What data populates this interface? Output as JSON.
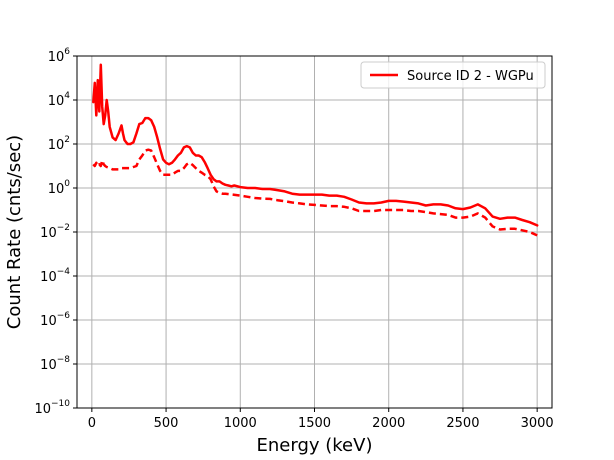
{
  "chart_data": {
    "type": "line",
    "title": "",
    "xlabel": "Energy (keV)",
    "ylabel": "Count Rate (cnts/sec)",
    "xlim": [
      -100,
      3100
    ],
    "ylim_exponent": [
      -10,
      6
    ],
    "y_scale": "log",
    "grid": true,
    "legend_position": "top-right",
    "x_ticks": [
      {
        "value": 0,
        "label": "0"
      },
      {
        "value": 500,
        "label": "500"
      },
      {
        "value": 1000,
        "label": "1000"
      },
      {
        "value": 1500,
        "label": "1500"
      },
      {
        "value": 2000,
        "label": "2000"
      },
      {
        "value": 2500,
        "label": "2500"
      },
      {
        "value": 3000,
        "label": "3000"
      }
    ],
    "y_ticks": [
      {
        "exp": 6,
        "base": "10",
        "sup": "6"
      },
      {
        "exp": 4,
        "base": "10",
        "sup": "4"
      },
      {
        "exp": 2,
        "base": "10",
        "sup": "2"
      },
      {
        "exp": 0,
        "base": "10",
        "sup": "0"
      },
      {
        "exp": -2,
        "base": "10",
        "sup": "−2"
      },
      {
        "exp": -4,
        "base": "10",
        "sup": "−4"
      },
      {
        "exp": -6,
        "base": "10",
        "sup": "−6"
      },
      {
        "exp": -8,
        "base": "10",
        "sup": "−8"
      },
      {
        "exp": -10,
        "base": "10",
        "sup": "−10"
      }
    ],
    "series": [
      {
        "name": "Source ID 2 - WGPu",
        "color": "#ff0000",
        "style": "solid",
        "x": [
          10,
          20,
          30,
          40,
          50,
          60,
          70,
          80,
          90,
          100,
          110,
          120,
          140,
          160,
          180,
          200,
          210,
          220,
          240,
          260,
          280,
          300,
          320,
          340,
          360,
          380,
          400,
          420,
          440,
          460,
          480,
          500,
          520,
          540,
          560,
          580,
          600,
          620,
          640,
          660,
          680,
          700,
          720,
          740,
          760,
          780,
          800,
          820,
          840,
          860,
          880,
          900,
          920,
          940,
          960,
          1000,
          1050,
          1100,
          1150,
          1200,
          1250,
          1300,
          1350,
          1400,
          1450,
          1500,
          1550,
          1600,
          1650,
          1700,
          1750,
          1800,
          1850,
          1900,
          1950,
          2000,
          2050,
          2100,
          2150,
          2200,
          2250,
          2300,
          2350,
          2400,
          2450,
          2500,
          2550,
          2600,
          2650,
          2700,
          2750,
          2800,
          2850,
          2900,
          2950,
          3000
        ],
        "y": [
          8000,
          60000,
          2000,
          80000,
          3000,
          400000,
          5000,
          800,
          2000,
          10000,
          3000,
          600,
          200,
          150,
          300,
          700,
          300,
          150,
          100,
          100,
          120,
          300,
          800,
          900,
          1500,
          1500,
          1200,
          600,
          200,
          60,
          20,
          14,
          12,
          14,
          20,
          30,
          40,
          70,
          80,
          70,
          40,
          30,
          30,
          25,
          15,
          8,
          4,
          2.5,
          2,
          2,
          1.6,
          1.4,
          1.3,
          1.2,
          1.3,
          1.1,
          1.0,
          1.0,
          0.9,
          0.9,
          0.8,
          0.7,
          0.55,
          0.5,
          0.5,
          0.5,
          0.5,
          0.45,
          0.45,
          0.4,
          0.3,
          0.22,
          0.2,
          0.2,
          0.22,
          0.26,
          0.26,
          0.24,
          0.22,
          0.2,
          0.16,
          0.18,
          0.18,
          0.16,
          0.12,
          0.11,
          0.13,
          0.18,
          0.12,
          0.05,
          0.04,
          0.045,
          0.045,
          0.035,
          0.028,
          0.02
        ]
      },
      {
        "name": "",
        "color": "#ff0000",
        "style": "dashed",
        "x": [
          10,
          20,
          30,
          40,
          50,
          60,
          70,
          80,
          90,
          100,
          120,
          140,
          160,
          180,
          200,
          220,
          240,
          260,
          280,
          300,
          320,
          340,
          360,
          380,
          400,
          420,
          440,
          460,
          480,
          500,
          520,
          540,
          560,
          580,
          600,
          620,
          640,
          660,
          680,
          700,
          720,
          740,
          760,
          780,
          800,
          820,
          840,
          860,
          880,
          900,
          950,
          1000,
          1050,
          1100,
          1150,
          1200,
          1250,
          1300,
          1350,
          1400,
          1450,
          1500,
          1550,
          1600,
          1650,
          1700,
          1750,
          1800,
          1850,
          1900,
          1950,
          2000,
          2050,
          2100,
          2150,
          2200,
          2250,
          2300,
          2350,
          2400,
          2450,
          2500,
          2550,
          2600,
          2650,
          2700,
          2750,
          2800,
          2850,
          2900,
          2950,
          3000
        ],
        "y": [
          12,
          10,
          14,
          10,
          12,
          10,
          18,
          12,
          10,
          9,
          8,
          7,
          7,
          7,
          8,
          8,
          8,
          8,
          9,
          10,
          20,
          30,
          50,
          55,
          50,
          25,
          12,
          6,
          4,
          4,
          4,
          4,
          5,
          6,
          6,
          8,
          12,
          14,
          11,
          8,
          6,
          5,
          4,
          3.5,
          2.5,
          1.2,
          0.7,
          0.6,
          0.55,
          0.55,
          0.5,
          0.45,
          0.4,
          0.35,
          0.33,
          0.32,
          0.28,
          0.25,
          0.22,
          0.2,
          0.18,
          0.17,
          0.16,
          0.15,
          0.15,
          0.14,
          0.12,
          0.09,
          0.09,
          0.09,
          0.1,
          0.1,
          0.1,
          0.1,
          0.09,
          0.09,
          0.08,
          0.07,
          0.065,
          0.06,
          0.045,
          0.045,
          0.05,
          0.07,
          0.045,
          0.018,
          0.013,
          0.014,
          0.014,
          0.012,
          0.01,
          0.007
        ]
      }
    ]
  }
}
